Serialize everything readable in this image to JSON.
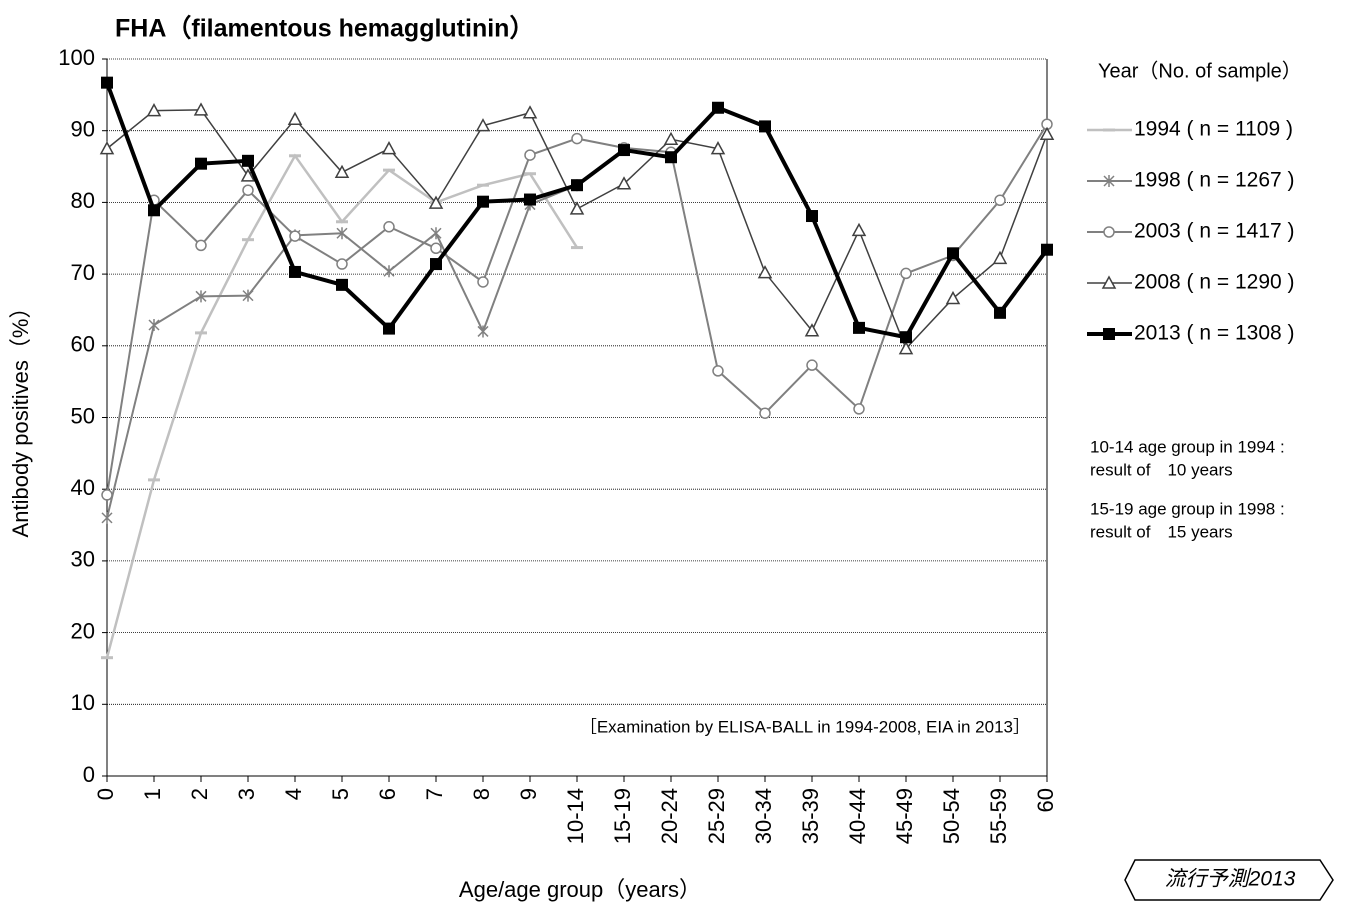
{
  "chart_data": {
    "type": "line",
    "title": "FHA（filamentous hemagglutinin）",
    "y_label": "Antibody positives（%）",
    "x_label": "Age/age group（years）",
    "legend_title": "Year（No. of sample）",
    "categories": [
      "0",
      "1",
      "2",
      "3",
      "4",
      "5",
      "6",
      "7",
      "8",
      "9",
      "10-14",
      "15-19",
      "20-24",
      "25-29",
      "30-34",
      "35-39",
      "40-44",
      "45-49",
      "50-54",
      "55-59",
      "60"
    ],
    "series": [
      {
        "name": "1994 ( n = 1109 )",
        "color": "#c0c0c0",
        "marker": "dash",
        "width": 2.5,
        "values": [
          16.5,
          41.3,
          61.8,
          74.8,
          86.5,
          77.3,
          84.5,
          80,
          82.4,
          84,
          73.7,
          null,
          null,
          null,
          null,
          null,
          null,
          null,
          null,
          null,
          null
        ]
      },
      {
        "name": "1998 ( n = 1267 )",
        "color": "#808080",
        "marker": "asterisk",
        "width": 2,
        "values": [
          36,
          62.9,
          66.9,
          67,
          75.4,
          75.7,
          70.4,
          75.7,
          62,
          79.7,
          82.4,
          87.5,
          null,
          null,
          null,
          null,
          null,
          null,
          null,
          null,
          null
        ]
      },
      {
        "name": "2003 ( n = 1417 )",
        "color": "#808080",
        "marker": "circle",
        "width": 2,
        "values": [
          39.2,
          80.3,
          74,
          81.7,
          75.3,
          71.4,
          76.6,
          73.6,
          68.9,
          86.6,
          88.9,
          87.6,
          87,
          56.5,
          50.6,
          57.3,
          51.2,
          70.1,
          72.6,
          80.3,
          90.9
        ]
      },
      {
        "name": "2008 ( n = 1290 )",
        "color": "#404040",
        "marker": "triangle",
        "width": 1.5,
        "values": [
          87.5,
          92.8,
          92.9,
          83.7,
          91.6,
          84.2,
          87.5,
          79.9,
          90.7,
          92.5,
          79.1,
          82.6,
          88.8,
          87.5,
          70.2,
          62.1,
          76.1,
          59.6,
          66.6,
          72.2,
          89.5
        ]
      },
      {
        "name": "2013 ( n = 1308 )",
        "color": "#000000",
        "marker": "square",
        "width": 4,
        "values": [
          96.7,
          78.9,
          85.4,
          85.8,
          70.3,
          68.5,
          62.4,
          71.4,
          80.1,
          80.4,
          82.4,
          87.3,
          86.3,
          93.2,
          90.6,
          78.1,
          62.5,
          61.2,
          72.9,
          64.6,
          73.4
        ]
      }
    ],
    "ylim": [
      0,
      100
    ],
    "yticks": [
      0,
      10,
      20,
      30,
      40,
      50,
      60,
      70,
      80,
      90,
      100
    ],
    "grid": true,
    "legend": "right",
    "annotation": "［Examination by ELISA-BALL in 1994-2008, EIA in 2013］",
    "notes": [
      [
        "10-14 age group in 1994 :",
        "result of　10 years"
      ],
      [
        "15-19 age group in 1998 :",
        "result of　15 years"
      ]
    ],
    "logo": "流行予測2013"
  }
}
